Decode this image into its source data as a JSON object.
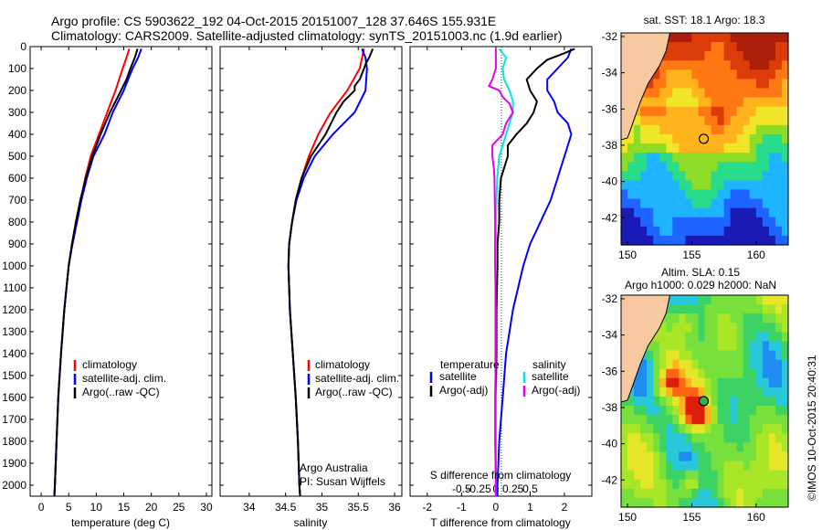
{
  "header": {
    "line1": "Argo profile: CS 5903622_192 04-Oct-2015 20151007_128 37.646S 155.931E",
    "line2": "Climatology: CARS2009. Satellite-adjusted climatology: synTS_20151003.nc (1.9d earlier)"
  },
  "colors": {
    "climatology": "#ff0000",
    "satellite": "#0000ff",
    "argo": "#000000",
    "sat_s": "#00e5e5",
    "argo_s": "#e600e6"
  },
  "chart_data": [
    {
      "type": "line",
      "id": "temperature",
      "xlabel": "temperature (deg C)",
      "ylabel": "",
      "xlim": [
        -2,
        31
      ],
      "ylim": [
        2050,
        0
      ],
      "xticks": [
        0,
        5,
        10,
        15,
        20,
        25,
        30
      ],
      "yticks": [
        0,
        100,
        200,
        300,
        400,
        500,
        600,
        700,
        800,
        900,
        1000,
        1100,
        1200,
        1300,
        1400,
        1500,
        1600,
        1700,
        1800,
        1900,
        2000
      ],
      "legend": [
        "climatology",
        "satellite-adj. clim.",
        "Argo(..raw -QC)"
      ],
      "series": [
        {
          "name": "climatology",
          "color": "#ff0000",
          "depth": [
            10,
            50,
            100,
            200,
            300,
            400,
            500,
            600,
            700,
            800,
            900,
            1000,
            1200,
            1400,
            1600,
            1800,
            2000,
            2050
          ],
          "values": [
            16.0,
            15.5,
            14.8,
            13.5,
            12.0,
            10.5,
            9.0,
            8.0,
            7.2,
            6.3,
            5.6,
            5.0,
            4.2,
            3.6,
            3.1,
            2.8,
            2.5,
            2.4
          ]
        },
        {
          "name": "satellite-adj. clim.",
          "color": "#0000ff",
          "depth": [
            10,
            50,
            100,
            150,
            200,
            300,
            400,
            500,
            600,
            700,
            800,
            900,
            1000,
            1200,
            1400,
            1600,
            1800,
            2000,
            2050
          ],
          "values": [
            18.2,
            17.6,
            16.6,
            15.8,
            15.0,
            13.0,
            11.5,
            9.5,
            8.3,
            7.3,
            6.5,
            5.7,
            5.0,
            4.2,
            3.6,
            3.1,
            2.8,
            2.5,
            2.4
          ]
        },
        {
          "name": "Argo(..raw -QC)",
          "color": "#000000",
          "depth": [
            10,
            50,
            100,
            150,
            200,
            250,
            300,
            400,
            500,
            600,
            700,
            800,
            900,
            1000,
            1200,
            1400,
            1600,
            1800,
            2000,
            2050
          ],
          "values": [
            17.5,
            17.0,
            16.2,
            15.5,
            14.5,
            13.5,
            12.5,
            10.8,
            9.3,
            8.1,
            7.1,
            6.3,
            5.6,
            5.0,
            4.2,
            3.6,
            3.1,
            2.8,
            2.5,
            2.4
          ]
        }
      ]
    },
    {
      "type": "line",
      "id": "salinity",
      "xlabel": "salinity",
      "ylabel": "",
      "xlim": [
        33.6,
        36.1
      ],
      "ylim": [
        2050,
        0
      ],
      "xticks": [
        34,
        34.5,
        35,
        35.5,
        36
      ],
      "legend": [
        "climatology",
        "satellite-adj. clim.",
        "Argo(..raw -QC)"
      ],
      "annotation": [
        "Argo Australia",
        "PI: Susan Wijffels"
      ],
      "series": [
        {
          "name": "climatology",
          "color": "#ff0000",
          "depth": [
            10,
            100,
            200,
            300,
            400,
            500,
            600,
            700,
            800,
            900,
            1000,
            1200,
            1400,
            1600,
            1800,
            2000,
            2050
          ],
          "values": [
            35.58,
            35.52,
            35.35,
            35.12,
            34.95,
            34.82,
            34.72,
            34.64,
            34.59,
            34.55,
            34.54,
            34.56,
            34.6,
            34.64,
            34.67,
            34.69,
            34.7
          ]
        },
        {
          "name": "satellite-adj. clim.",
          "color": "#0000ff",
          "depth": [
            10,
            50,
            100,
            200,
            300,
            400,
            500,
            600,
            700,
            800,
            900,
            1000,
            1200,
            1400,
            1600,
            1800,
            2000,
            2050
          ],
          "values": [
            35.55,
            35.6,
            35.62,
            35.6,
            35.45,
            35.15,
            34.9,
            34.75,
            34.65,
            34.59,
            34.55,
            34.54,
            34.56,
            34.6,
            34.64,
            34.67,
            34.69,
            34.7
          ]
        },
        {
          "name": "Argo(..raw -QC)",
          "color": "#000000",
          "depth": [
            10,
            50,
            80,
            100,
            150,
            180,
            200,
            250,
            300,
            400,
            500,
            600,
            700,
            800,
            900,
            1000,
            1200,
            1400,
            1600,
            1800,
            2000,
            2050
          ],
          "values": [
            35.7,
            35.65,
            35.6,
            35.58,
            35.52,
            35.45,
            35.45,
            35.3,
            35.2,
            35.05,
            34.85,
            34.72,
            34.64,
            34.59,
            34.55,
            34.54,
            34.56,
            34.6,
            34.64,
            34.67,
            34.69,
            34.7
          ]
        }
      ]
    },
    {
      "type": "line",
      "id": "differences",
      "xlabel": "T difference from climatology",
      "xlabel_top": "S difference from climatology",
      "xlim": [
        -2.5,
        2.8
      ],
      "ylim": [
        2050,
        0
      ],
      "xticks": [
        -2,
        -1,
        0,
        1,
        2
      ],
      "s_ticks": [
        {
          "v": -0.5,
          "label": "-0.5"
        },
        {
          "v": -0.25,
          "label": "-0.25"
        },
        {
          "v": 0,
          "label": "0"
        },
        {
          "v": 0.25,
          "label": "0.25"
        },
        {
          "v": 0.5,
          "label": "0.5"
        }
      ],
      "legend_groups": {
        "temperature": [
          "satellite",
          "Argo(-adj)"
        ],
        "salinity": [
          "satellite",
          "Argo(-adj)"
        ]
      },
      "series": [
        {
          "name": "T satellite",
          "color": "#0000ff",
          "depth": [
            10,
            50,
            100,
            150,
            200,
            250,
            300,
            350,
            400,
            500,
            600,
            700,
            800,
            900,
            1000,
            1200,
            1400,
            1600,
            1800,
            2000,
            2050
          ],
          "values": [
            2.2,
            2.1,
            1.8,
            1.5,
            1.5,
            1.7,
            1.8,
            2.1,
            2.2,
            2.0,
            1.8,
            1.6,
            1.3,
            1.0,
            0.8,
            0.5,
            0.3,
            0.2,
            0.1,
            0.05,
            0.05
          ]
        },
        {
          "name": "T Argo(-adj)",
          "color": "#000000",
          "depth": [
            10,
            30,
            60,
            100,
            150,
            200,
            250,
            300,
            350,
            400,
            450,
            500,
            600,
            700,
            800,
            900,
            1000,
            1200,
            1400,
            1600,
            1800,
            2000,
            2050
          ],
          "values": [
            2.3,
            2.0,
            1.5,
            1.2,
            0.9,
            1.0,
            1.2,
            1.1,
            0.9,
            0.6,
            0.35,
            0.35,
            0.15,
            0.1,
            0.1,
            0.05,
            0.05,
            0.02,
            0.02,
            0.0,
            0.0,
            0.0,
            0.0
          ]
        },
        {
          "name": "S satellite",
          "color": "#00e5e5",
          "depth": [
            10,
            50,
            100,
            150,
            200,
            250,
            300,
            350,
            400,
            450,
            500,
            600,
            700,
            800,
            1000,
            1200,
            1400,
            1600,
            1800,
            2000,
            2050
          ],
          "values": [
            0.05,
            0.15,
            0.1,
            0.12,
            0.2,
            0.25,
            0.25,
            0.2,
            0.15,
            0.1,
            0.05,
            0.02,
            0.01,
            0.0,
            0.0,
            -0.01,
            -0.01,
            0.0,
            0.0,
            0.0,
            0.0
          ]
        },
        {
          "name": "S Argo(-adj)",
          "color": "#e600e6",
          "depth": [
            10,
            50,
            100,
            150,
            180,
            200,
            230,
            260,
            300,
            350,
            400,
            450,
            500,
            550,
            600,
            800,
            1000,
            1200,
            1400,
            1600,
            1800,
            2000,
            2050
          ],
          "values": [
            0.0,
            0.0,
            0.0,
            -0.05,
            -0.1,
            0.05,
            0.1,
            0.2,
            0.25,
            0.15,
            0.1,
            -0.05,
            -0.05,
            -0.03,
            -0.02,
            -0.01,
            -0.01,
            0.0,
            0.0,
            -0.01,
            -0.01,
            0.0,
            0.0
          ]
        }
      ]
    },
    {
      "type": "heatmap",
      "id": "sst_map",
      "title": "sat. SST: 18.1 Argo: 18.3",
      "xlim": [
        149.5,
        162.5
      ],
      "ylim": [
        -43.5,
        -31.8
      ],
      "xticks": [
        150,
        155,
        160
      ],
      "yticks": [
        -32,
        -34,
        -36,
        -38,
        -40,
        -42
      ],
      "marker": {
        "lon": 155.931,
        "lat": -37.646
      },
      "colorscale": [
        "#1a1ab4",
        "#1e64ff",
        "#1eb4ff",
        "#28dc8c",
        "#8cdc28",
        "#f0e628",
        "#ffb41e",
        "#ff7814",
        "#dc3c0a",
        "#aa1e0a"
      ]
    },
    {
      "type": "heatmap",
      "id": "sla_map",
      "title_line1": "Altim. SLA: 0.15",
      "title_line2": "Argo h1000: 0.029 h2000: NaN",
      "xlim": [
        149.5,
        162.5
      ],
      "ylim": [
        -43.5,
        -31.8
      ],
      "xticks": [
        150,
        155,
        160
      ],
      "yticks": [
        -32,
        -34,
        -36,
        -38,
        -40,
        -42
      ],
      "marker": {
        "lon": 155.931,
        "lat": -37.646
      },
      "colorscale": [
        "#1e32c8",
        "#1e8cf0",
        "#28c8dc",
        "#3cd264",
        "#78e03c",
        "#aae628",
        "#e6e628",
        "#ffb41e",
        "#ff6414",
        "#dc1e0a"
      ]
    }
  ],
  "footer": {
    "stamp": "©IMOS 10-Oct-2015 20:40:31"
  }
}
